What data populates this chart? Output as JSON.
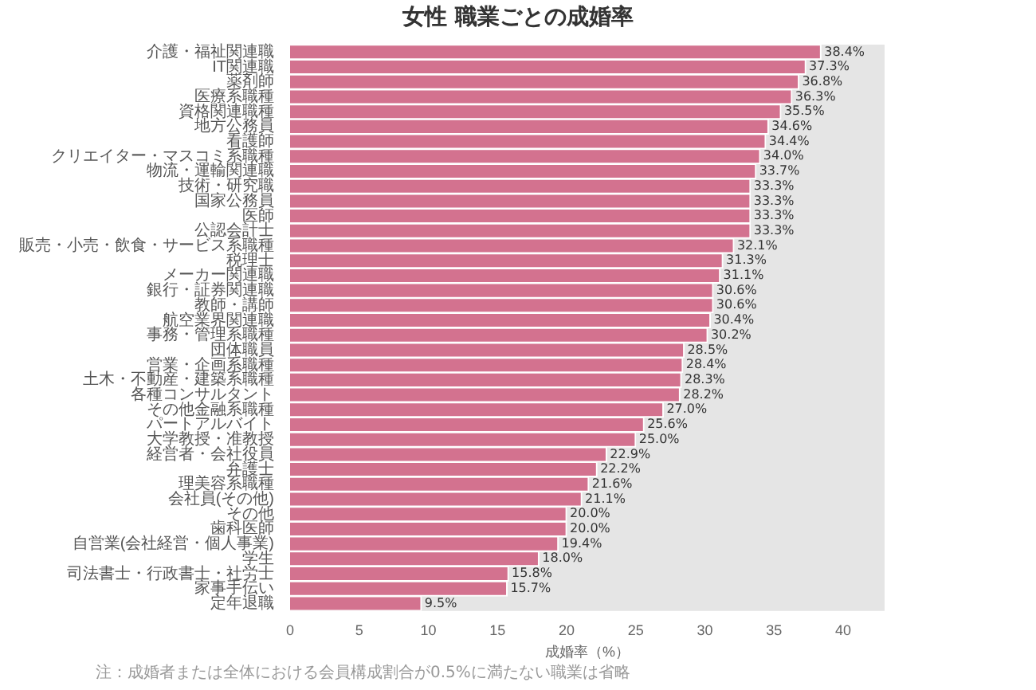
{
  "chart_data": {
    "type": "bar",
    "orientation": "horizontal",
    "title": "女性 職業ごとの成婚率",
    "xlabel": "成婚率（%）",
    "categories": [
      "介護・福祉関連職",
      "IT関連職",
      "薬剤師",
      "医療系職種",
      "資格関連職種",
      "地方公務員",
      "看護師",
      "クリエイター・マスコミ系職種",
      "物流・運輸関連職",
      "技術・研究職",
      "国家公務員",
      "医師",
      "公認会計士",
      "販売・小売・飲食・サービス系職種",
      "税理士",
      "メーカー関連職",
      "銀行・証券関連職",
      "教師・講師",
      "航空業界関連職",
      "事務・管理系職種",
      "団体職員",
      "営業・企画系職種",
      "土木・不動産・建築系職種",
      "各種コンサルタント",
      "その他金融系職種",
      "パートアルバイト",
      "大学教授・准教授",
      "経営者・会社役員",
      "弁護士",
      "理美容系職種",
      "会社員(その他)",
      "その他",
      "歯科医師",
      "自営業(会社経営・個人事業)",
      "学生",
      "司法書士・行政書士・社労士",
      "家事手伝い",
      "定年退職"
    ],
    "values": [
      38.4,
      37.3,
      36.8,
      36.3,
      35.5,
      34.6,
      34.4,
      34.0,
      33.7,
      33.3,
      33.3,
      33.3,
      33.3,
      32.1,
      31.3,
      31.1,
      30.6,
      30.6,
      30.4,
      30.2,
      28.5,
      28.4,
      28.3,
      28.2,
      27.0,
      25.6,
      25.0,
      22.9,
      22.2,
      21.6,
      21.1,
      20.0,
      20.0,
      19.4,
      18.0,
      15.8,
      15.7,
      9.5
    ],
    "value_labels": [
      "38.4%",
      "37.3%",
      "36.8%",
      "36.3%",
      "35.5%",
      "34.6%",
      "34.4%",
      "34.0%",
      "33.7%",
      "33.3%",
      "33.3%",
      "33.3%",
      "33.3%",
      "32.1%",
      "31.3%",
      "31.1%",
      "30.6%",
      "30.6%",
      "30.4%",
      "30.2%",
      "28.5%",
      "28.4%",
      "28.3%",
      "28.2%",
      "27.0%",
      "25.6%",
      "25.0%",
      "22.9%",
      "22.2%",
      "21.6%",
      "21.1%",
      "20.0%",
      "20.0%",
      "19.4%",
      "18.0%",
      "15.8%",
      "15.7%",
      "9.5%"
    ],
    "color": "#d3728f",
    "xlim": [
      0,
      43
    ],
    "xticks": [
      0,
      5,
      10,
      15,
      20,
      25,
      30,
      35,
      40
    ],
    "annotations": [
      "注：成婚者または全体における会員構成割合が0.5%に満たない職業は省略"
    ]
  }
}
